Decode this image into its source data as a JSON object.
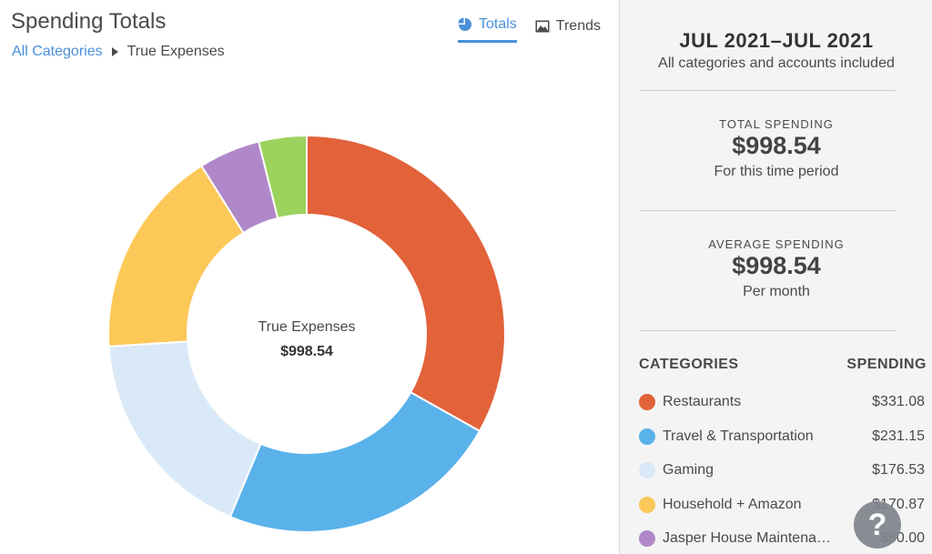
{
  "header": {
    "title": "Spending Totals",
    "breadcrumb_link": "All Categories",
    "breadcrumb_current": "True Expenses"
  },
  "tabs": [
    {
      "label": "Totals",
      "icon": "pie-chart-icon",
      "active": true
    },
    {
      "label": "Trends",
      "icon": "image-icon",
      "active": false
    }
  ],
  "sidebar": {
    "period": "JUL 2021–JUL 2021",
    "period_sub": "All categories and accounts included",
    "total_label": "TOTAL SPENDING",
    "total_value": "$998.54",
    "total_sub": "For this time period",
    "avg_label": "AVERAGE SPENDING",
    "avg_value": "$998.54",
    "avg_sub": "Per month",
    "categories_head": "CATEGORIES",
    "spending_head": "SPENDING",
    "categories": [
      {
        "name": "Restaurants",
        "amount": "$331.08",
        "color": "#e2623a"
      },
      {
        "name": "Travel & Transportation",
        "amount": "$231.15",
        "color": "#5ab2ea"
      },
      {
        "name": "Gaming",
        "amount": "$176.53",
        "color": "#d9e9f7"
      },
      {
        "name": "Household + Amazon",
        "amount": "$170.87",
        "color": "#fcc857"
      },
      {
        "name": "Jasper House Maintena…",
        "amount": "$50.00",
        "color": "#b088c9"
      }
    ]
  },
  "chart_data": {
    "type": "pie",
    "style": "donut",
    "center_label": "True Expenses",
    "center_value": "$998.54",
    "categories": [
      "Restaurants",
      "Travel & Transportation",
      "Gaming",
      "Household + Amazon",
      "Jasper House Maintena…",
      ""
    ],
    "values": [
      331.08,
      231.15,
      176.53,
      170.87,
      50.0,
      38.91
    ],
    "colors": [
      "#e2623a",
      "#5ab2ea",
      "#d9e9f7",
      "#fcc857",
      "#b088c9",
      "#9bd35e"
    ]
  },
  "help": {
    "label": "?"
  }
}
